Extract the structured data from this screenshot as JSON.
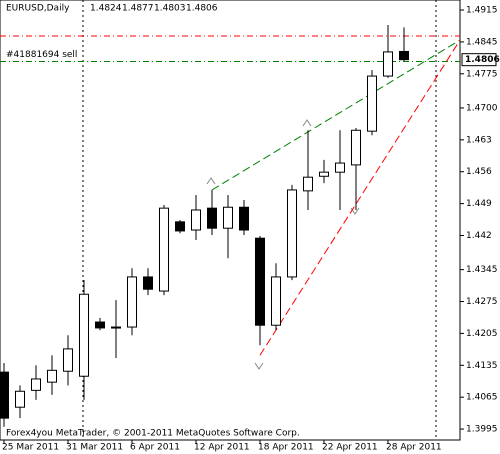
{
  "header": {
    "symbol": "EURUSD,Daily",
    "ohlc": [
      "1.4824",
      "1.4877",
      "1.4803",
      "1.4806"
    ]
  },
  "footer": "Forex4you MetaTrader, © 2001-2011 MetaQuotes Software Corp.",
  "chart_data": {
    "type": "candlestick",
    "categories": [
      "25 Mar 2011",
      null,
      null,
      null,
      "31 Mar 2011",
      null,
      null,
      null,
      "6 Apr 2011",
      null,
      null,
      null,
      "12 Apr 2011",
      null,
      null,
      null,
      "18 Apr 2011",
      null,
      null,
      null,
      "22 Apr 2011",
      null,
      null,
      null,
      "28 Apr 2011",
      null
    ],
    "open": [
      1.412,
      1.4043,
      1.408,
      1.4098,
      1.4122,
      1.4111,
      1.423,
      1.4217,
      1.4219,
      1.4329,
      1.4298,
      1.445,
      1.4432,
      1.448,
      1.4436,
      1.4482,
      1.4414,
      1.4223,
      1.4329,
      1.4518,
      1.455,
      1.4559,
      1.4575,
      1.4649,
      1.477,
      1.4824
    ],
    "high": [
      1.414,
      1.4091,
      1.4135,
      1.4157,
      1.4201,
      1.4322,
      1.4239,
      1.4278,
      1.4348,
      1.4348,
      1.4487,
      1.4454,
      1.4509,
      1.452,
      1.4509,
      1.4498,
      1.4419,
      1.4359,
      1.4531,
      1.4651,
      1.4586,
      1.4651,
      1.4656,
      1.4783,
      1.4882,
      1.4877
    ],
    "low": [
      1.4,
      1.4019,
      1.4059,
      1.407,
      1.4091,
      1.4059,
      1.4212,
      1.4151,
      1.4201,
      1.4289,
      1.4289,
      1.4425,
      1.441,
      1.4421,
      1.437,
      1.4421,
      1.4179,
      1.4212,
      1.4322,
      1.4476,
      1.4535,
      1.4476,
      1.4476,
      1.464,
      1.4766,
      1.4803
    ],
    "close": [
      1.4019,
      1.4078,
      1.4105,
      1.4124,
      1.4171,
      1.4291,
      1.4217,
      1.4219,
      1.4329,
      1.4302,
      1.448,
      1.443,
      1.4476,
      1.4436,
      1.4482,
      1.4432,
      1.4223,
      1.4329,
      1.452,
      1.4548,
      1.4559,
      1.4579,
      1.4651,
      1.477,
      1.4823,
      1.4806
    ],
    "ylim": [
      1.3971,
      1.4937
    ],
    "yticks": [
      1.4915,
      1.4845,
      1.4775,
      {
        "value": 1.47,
        "label": "1.4700"
      },
      1.463,
      1.456,
      1.449,
      1.442,
      1.4345,
      1.4275,
      1.4205,
      1.4135,
      1.4065,
      1.3995
    ],
    "current_price": 1.4806,
    "hlines": [
      {
        "value": 1.4858,
        "color": "#ff0000"
      },
      {
        "value": 1.4802,
        "color": "#008000",
        "label": "#41881694 sell"
      }
    ],
    "trendlines": [
      {
        "color": "#008000",
        "x": [
          13,
          28.5
        ],
        "values": [
          1.452,
          1.4849
        ]
      },
      {
        "color": "#ff0000",
        "x": [
          16,
          28.5
        ],
        "values": [
          1.4157,
          1.4849
        ]
      }
    ]
  }
}
